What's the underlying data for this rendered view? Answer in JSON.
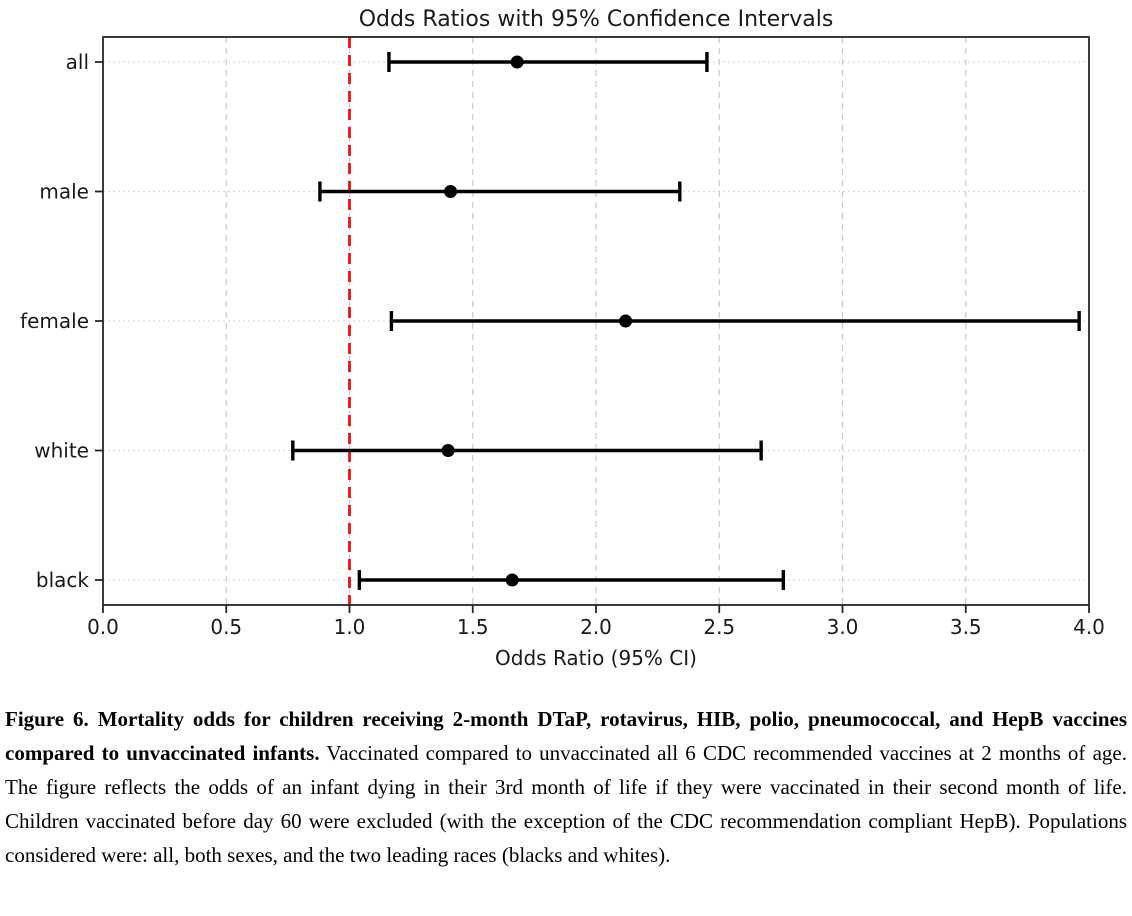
{
  "chart_data": {
    "type": "scatter",
    "subtype": "forest-plot-errorbar",
    "title": "Odds Ratios with 95% Confidence Intervals",
    "xlabel": "Odds Ratio (95% CI)",
    "ylabel": "",
    "categories": [
      "all",
      "male",
      "female",
      "white",
      "black"
    ],
    "series": [
      {
        "name": "Odds Ratio with 95% CI",
        "odds_ratio": [
          1.68,
          1.41,
          2.12,
          1.4,
          1.66
        ],
        "ci_low": [
          1.16,
          0.88,
          1.17,
          0.77,
          1.04
        ],
        "ci_high": [
          2.45,
          2.34,
          3.96,
          2.67,
          2.76
        ]
      }
    ],
    "xlim": [
      0.0,
      4.0
    ],
    "x_ticks": [
      0.0,
      0.5,
      1.0,
      1.5,
      2.0,
      2.5,
      3.0,
      3.5,
      4.0
    ],
    "reference_line_x": 1.0,
    "grid": true,
    "legend": false,
    "colors": {
      "marker": "#000000",
      "error_bar": "#000000",
      "reference_line": "#ee1111",
      "v_gridline": "#c9c9c9",
      "h_gridline": "#d9d9d9",
      "axis": "#262626"
    }
  },
  "figure_caption": {
    "bold": "Figure 6. Mortality odds for children receiving 2-month DTaP, rotavirus, HIB, polio, pneumococcal, and HepB vaccines compared to unvaccinated infants.",
    "text": " Vaccinated compared to unvaccinated all 6 CDC recommended vaccines at 2 months of age. The figure reflects the odds of an infant dying in their 3rd month of life if they were vaccinated in their second month of life. Children vaccinated before day 60 were excluded (with the exception of the CDC recommendation compliant HepB).  Populations considered were: all, both sexes, and the two leading races (blacks and whites)."
  }
}
